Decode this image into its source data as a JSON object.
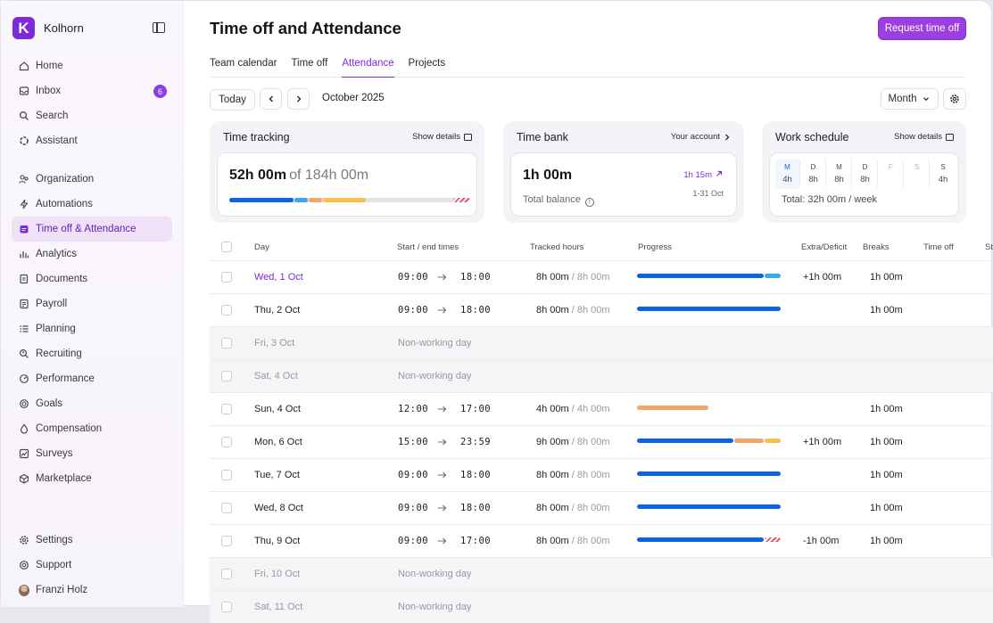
{
  "brand": {
    "name": "Kolhorn",
    "logo_letter": "K"
  },
  "nav_top": [
    {
      "label": "Home",
      "icon": "home-icon"
    },
    {
      "label": "Inbox",
      "icon": "inbox-icon",
      "badge": "6"
    },
    {
      "label": "Search",
      "icon": "search-icon"
    },
    {
      "label": "Assistant",
      "icon": "assistant-icon"
    }
  ],
  "nav_main": [
    {
      "label": "Organization",
      "icon": "organization-icon"
    },
    {
      "label": "Automations",
      "icon": "lightning-icon"
    },
    {
      "label": "Time off & Attendance",
      "icon": "calendar-icon",
      "active": true
    },
    {
      "label": "Analytics",
      "icon": "analytics-icon"
    },
    {
      "label": "Documents",
      "icon": "documents-icon"
    },
    {
      "label": "Payroll",
      "icon": "payroll-icon"
    },
    {
      "label": "Planning",
      "icon": "planning-icon"
    },
    {
      "label": "Recruiting",
      "icon": "recruiting-icon"
    },
    {
      "label": "Performance",
      "icon": "performance-icon"
    },
    {
      "label": "Goals",
      "icon": "goals-icon"
    },
    {
      "label": "Compensation",
      "icon": "compensation-icon"
    },
    {
      "label": "Surveys",
      "icon": "surveys-icon"
    },
    {
      "label": "Marketplace",
      "icon": "marketplace-icon"
    }
  ],
  "nav_bottom": [
    {
      "label": "Settings",
      "icon": "settings-icon"
    },
    {
      "label": "Support",
      "icon": "support-icon"
    },
    {
      "label": "Franzi Holz",
      "icon": "avatar"
    }
  ],
  "page": {
    "title": "Time off and Attendance",
    "request_button": "Request time off"
  },
  "tabs": [
    "Team calendar",
    "Time off",
    "Attendance",
    "Projects"
  ],
  "active_tab": 2,
  "toolbar": {
    "today": "Today",
    "period": "October 2025",
    "view": "Month"
  },
  "time_tracking": {
    "title": "Time tracking",
    "link": "Show details",
    "tracked": "52h 00m",
    "of": "of 184h 00m",
    "segments": [
      {
        "pct": 0.27,
        "color": "#0b63e5"
      },
      {
        "pct": 0.06,
        "color": "#3aa6f0"
      },
      {
        "pct": 0.06,
        "color": "#f4a56a"
      },
      {
        "pct": 0.18,
        "color": "#f5c04a"
      }
    ]
  },
  "time_bank": {
    "title": "Time bank",
    "link": "Your account",
    "balance": "1h 00m",
    "balance_label": "Total balance",
    "change": "1h 15m",
    "range": "1-31 Oct"
  },
  "work_schedule": {
    "title": "Work schedule",
    "link": "Show details",
    "total": "Total: 32h 00m / week",
    "days": [
      {
        "d": "M",
        "h": "4h",
        "active": true
      },
      {
        "d": "D",
        "h": "8h"
      },
      {
        "d": "M",
        "h": "8h"
      },
      {
        "d": "D",
        "h": "8h"
      },
      {
        "d": "F",
        "h": "",
        "off": true
      },
      {
        "d": "S",
        "h": "",
        "off": true
      },
      {
        "d": "S",
        "h": "4h"
      }
    ]
  },
  "table": {
    "headers": [
      "Day",
      "Start / end times",
      "Tracked hours",
      "Progress",
      "Extra/Deficit",
      "Breaks",
      "Time off",
      "St"
    ],
    "rows": [
      {
        "day": "Wed, 1 Oct",
        "today": true,
        "start": "09:00",
        "end": "18:00",
        "tracked": "8h 00m",
        "target": "/ 8h 00m",
        "extra": "+1h 00m",
        "breaks": "1h 00m",
        "bar": [
          {
            "w": 0.88,
            "c": "blue"
          },
          {
            "w": 0.12,
            "c": "lblue"
          }
        ]
      },
      {
        "day": "Thu, 2 Oct",
        "start": "09:00",
        "end": "18:00",
        "tracked": "8h 00m",
        "target": "/ 8h 00m",
        "extra": "",
        "breaks": "1h 00m",
        "bar": [
          {
            "w": 1,
            "c": "blue"
          }
        ]
      },
      {
        "day": "Fri, 3 Oct",
        "nonworking": true,
        "note": "Non-working day"
      },
      {
        "day": "Sat, 4 Oct",
        "nonworking": true,
        "note": "Non-working day"
      },
      {
        "day": "Sun, 4 Oct",
        "start": "12:00",
        "end": "17:00",
        "tracked": "4h 00m",
        "target": "/ 4h 00m",
        "extra": "",
        "breaks": "1h 00m",
        "bar": [
          {
            "w": 0.5,
            "c": "orange"
          }
        ]
      },
      {
        "day": "Mon, 6 Oct",
        "start": "15:00",
        "end": "23:59",
        "tracked": "9h 00m",
        "target": "/ 8h 00m",
        "extra": "+1h 00m",
        "breaks": "1h 00m",
        "bar": [
          {
            "w": 0.67,
            "c": "blue"
          },
          {
            "w": 0.21,
            "c": "orange"
          },
          {
            "w": 0.12,
            "c": "amber"
          }
        ]
      },
      {
        "day": "Tue, 7 Oct",
        "start": "09:00",
        "end": "18:00",
        "tracked": "8h 00m",
        "target": "/ 8h 00m",
        "extra": "",
        "breaks": "1h 00m",
        "bar": [
          {
            "w": 1,
            "c": "blue"
          }
        ]
      },
      {
        "day": "Wed, 8 Oct",
        "start": "09:00",
        "end": "18:00",
        "tracked": "8h 00m",
        "target": "/ 8h 00m",
        "extra": "",
        "breaks": "1h 00m",
        "bar": [
          {
            "w": 1,
            "c": "blue"
          }
        ]
      },
      {
        "day": "Thu,  9 Oct",
        "start": "09:00",
        "end": "17:00",
        "tracked": "8h 00m",
        "target": "/ 8h 00m",
        "extra": "-1h 00m",
        "breaks": "1h 00m",
        "bar": [
          {
            "w": 0.88,
            "c": "blue"
          },
          {
            "w": 0.12,
            "c": "hatch"
          }
        ]
      },
      {
        "day": "Fri, 10 Oct",
        "nonworking": true,
        "note": "Non-working day"
      },
      {
        "day": "Sat, 11 Oct",
        "nonworking": true,
        "note": "Non-working day"
      }
    ]
  }
}
